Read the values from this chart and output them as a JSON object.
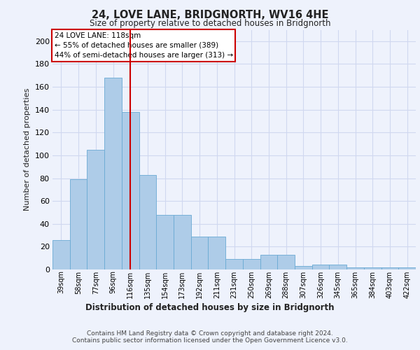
{
  "title1": "24, LOVE LANE, BRIDGNORTH, WV16 4HE",
  "title2": "Size of property relative to detached houses in Bridgnorth",
  "xlabel": "Distribution of detached houses by size in Bridgnorth",
  "ylabel": "Number of detached properties",
  "bar_values": [
    26,
    79,
    105,
    168,
    138,
    83,
    48,
    48,
    29,
    29,
    9,
    9,
    13,
    13,
    3,
    4,
    4,
    2,
    2,
    2,
    2
  ],
  "x_labels": [
    "39sqm",
    "58sqm",
    "77sqm",
    "96sqm",
    "116sqm",
    "135sqm",
    "154sqm",
    "173sqm",
    "192sqm",
    "211sqm",
    "231sqm",
    "250sqm",
    "269sqm",
    "288sqm",
    "307sqm",
    "326sqm",
    "345sqm",
    "365sqm",
    "384sqm",
    "403sqm",
    "422sqm"
  ],
  "bar_color": "#aecce8",
  "bar_edge_color": "#6aaad4",
  "ylim": [
    0,
    210
  ],
  "yticks": [
    0,
    20,
    40,
    60,
    80,
    100,
    120,
    140,
    160,
    180,
    200
  ],
  "red_line_index": 4,
  "annotation_line1": "24 LOVE LANE: 118sqm",
  "annotation_line2": "← 55% of detached houses are smaller (389)",
  "annotation_line3": "44% of semi-detached houses are larger (313) →",
  "annotation_box_color": "#ffffff",
  "annotation_box_edge": "#cc0000",
  "red_line_color": "#cc0000",
  "footer1": "Contains HM Land Registry data © Crown copyright and database right 2024.",
  "footer2": "Contains public sector information licensed under the Open Government Licence v3.0.",
  "bg_color": "#eef2fc",
  "plot_bg_color": "#eef2fc",
  "grid_color": "#d0d8f0"
}
